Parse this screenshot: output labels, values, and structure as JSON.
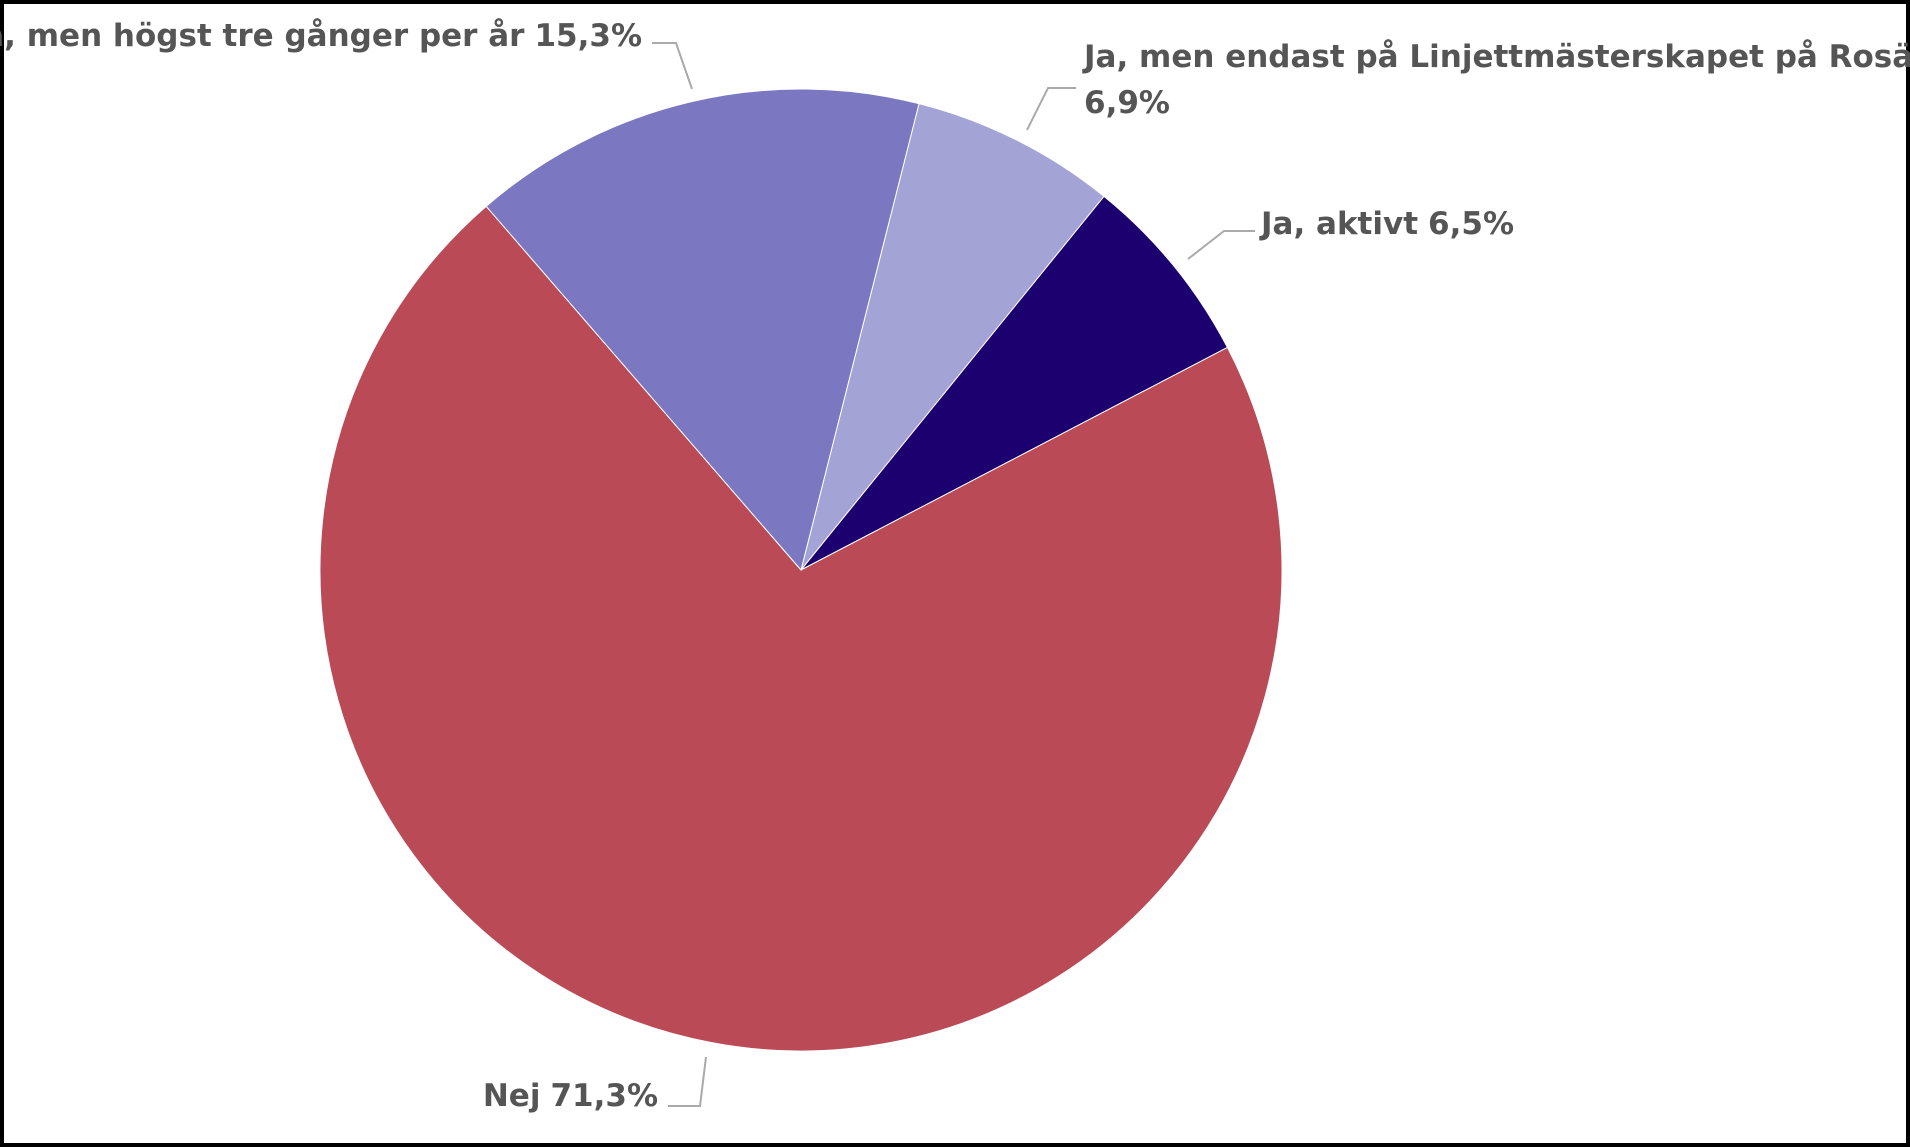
{
  "chart_data": {
    "type": "pie",
    "categories": [
      "Ja, men endast på Linjettmästerskapet på Rosättra",
      "Ja, aktivt",
      "Nej",
      "Ja, men högst tre gånger per år"
    ],
    "values": [
      6.9,
      6.5,
      71.3,
      15.3
    ],
    "value_labels": [
      "6,9%",
      "6,5%",
      "71,3%",
      "15,3%"
    ],
    "colors": [
      "#a3a3d6",
      "#1c0070",
      "#b94a56",
      "#7b77c1"
    ]
  }
}
